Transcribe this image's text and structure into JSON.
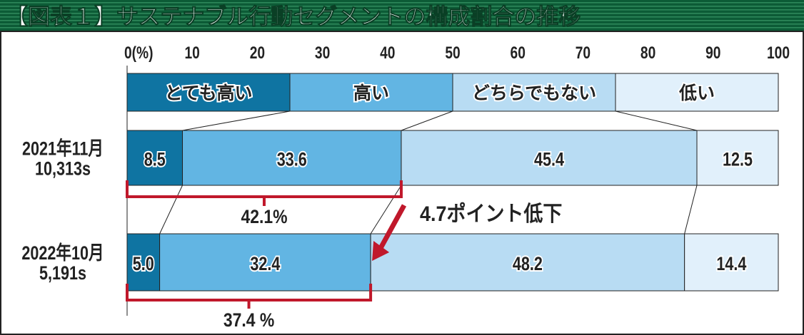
{
  "title": "【図表１】サステナブル行動セグメントの構成割合の推移",
  "chart_data": {
    "type": "bar",
    "orientation": "horizontal-stacked-100",
    "xlim": [
      0,
      100
    ],
    "x_ticks": [
      "0(%)",
      "10",
      "20",
      "30",
      "40",
      "50",
      "60",
      "70",
      "80",
      "90",
      "100"
    ],
    "legend": [
      "とても高い",
      "高い",
      "どちらでもない",
      "低い"
    ],
    "legend_placement": "top",
    "categories": [
      "2021年11月",
      "2022年10月"
    ],
    "sample_sizes": [
      "10,313s",
      "5,191s"
    ],
    "series": [
      {
        "name": "とても高い",
        "values": [
          8.5,
          5.0
        ],
        "labels": [
          "8.5",
          "5.0"
        ],
        "color": "#0f74a2"
      },
      {
        "name": "高い",
        "values": [
          33.6,
          32.4
        ],
        "labels": [
          "33.6",
          "32.4"
        ],
        "color": "#62b5e3"
      },
      {
        "name": "どちらでもない",
        "values": [
          45.4,
          48.2
        ],
        "labels": [
          "45.4",
          "48.2"
        ],
        "color": "#b8dcf3"
      },
      {
        "name": "低い",
        "values": [
          12.5,
          14.4
        ],
        "labels": [
          "12.5",
          "14.4"
        ],
        "color": "#e1f0fb"
      }
    ],
    "annotations": {
      "bracket_totals": [
        "42.1%",
        "37.4 %"
      ],
      "change": "4.7ポイント低下",
      "accent_color": "#c0182b"
    },
    "title_bar_color": "#0c5b36",
    "grid": false
  }
}
